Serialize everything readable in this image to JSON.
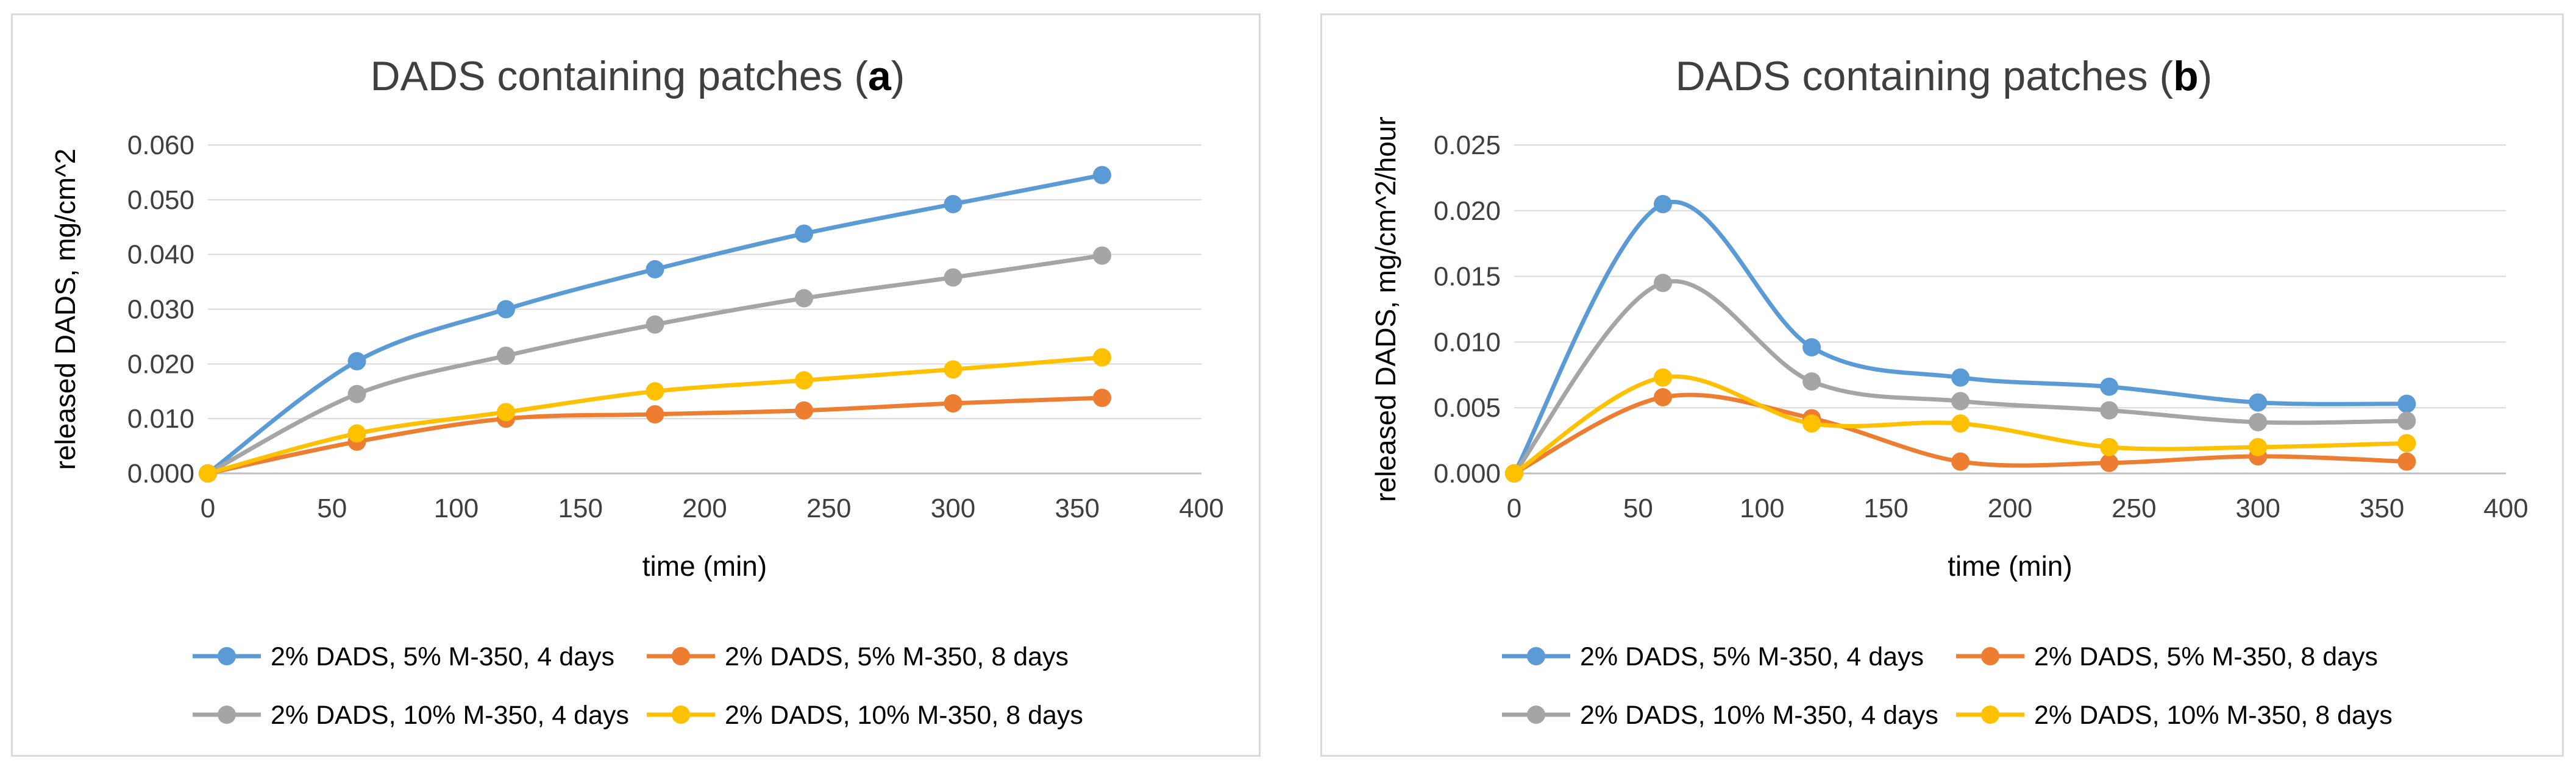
{
  "chart_data": [
    {
      "type": "line",
      "title": "DADS containing patches (",
      "title_letter": "a",
      "title_close": ")",
      "xlabel": "time (min)",
      "ylabel": "released DADS, mg/cm^2",
      "xlim": [
        0,
        400
      ],
      "ylim": [
        0,
        0.06
      ],
      "x_ticks": [
        0,
        50,
        100,
        150,
        200,
        250,
        300,
        350,
        400
      ],
      "x_tick_labels": [
        "0",
        "50",
        "100",
        "150",
        "200",
        "250",
        "300",
        "350",
        "400"
      ],
      "y_ticks": [
        0,
        0.01,
        0.02,
        0.03,
        0.04,
        0.05,
        0.06
      ],
      "y_tick_labels": [
        "0.000",
        "0.010",
        "0.020",
        "0.030",
        "0.040",
        "0.050",
        "0.060"
      ],
      "grid": "horizontal",
      "legend_position": "bottom",
      "x": [
        0,
        60,
        120,
        180,
        240,
        300,
        360
      ],
      "series": [
        {
          "name": "2% DADS, 5% M-350, 4 days",
          "color": "#5b9bd5",
          "values": [
            0.0,
            0.0205,
            0.03,
            0.0373,
            0.0438,
            0.0492,
            0.0545
          ]
        },
        {
          "name": "2% DADS, 5% M-350, 8 days",
          "color": "#ed7d31",
          "values": [
            0.0,
            0.0058,
            0.01,
            0.0108,
            0.0115,
            0.0128,
            0.0138
          ]
        },
        {
          "name": "2% DADS, 10% M-350, 4 days",
          "color": "#a5a5a5",
          "values": [
            0.0,
            0.0145,
            0.0215,
            0.0272,
            0.032,
            0.0358,
            0.0398
          ]
        },
        {
          "name": "2% DADS, 10% M-350, 8 days",
          "color": "#ffc000",
          "values": [
            0.0,
            0.0073,
            0.0112,
            0.015,
            0.017,
            0.019,
            0.0212
          ]
        }
      ]
    },
    {
      "type": "line",
      "title": "DADS containing patches (",
      "title_letter": "b",
      "title_close": ")",
      "xlabel": "time (min)",
      "ylabel": "released DADS, mg/cm^2/hour",
      "xlim": [
        0,
        400
      ],
      "ylim": [
        0,
        0.025
      ],
      "x_ticks": [
        0,
        50,
        100,
        150,
        200,
        250,
        300,
        350,
        400
      ],
      "x_tick_labels": [
        "0",
        "50",
        "100",
        "150",
        "200",
        "250",
        "300",
        "350",
        "400"
      ],
      "y_ticks": [
        0,
        0.005,
        0.01,
        0.015,
        0.02,
        0.025
      ],
      "y_tick_labels": [
        "0.000",
        "0.005",
        "0.010",
        "0.015",
        "0.020",
        "0.025"
      ],
      "grid": "horizontal",
      "legend_position": "bottom",
      "x": [
        0,
        60,
        120,
        180,
        240,
        300,
        360
      ],
      "series": [
        {
          "name": "2% DADS, 5% M-350, 4 days",
          "color": "#5b9bd5",
          "values": [
            0.0,
            0.0205,
            0.0096,
            0.0073,
            0.0066,
            0.0054,
            0.0053
          ]
        },
        {
          "name": "2% DADS, 5% M-350, 8 days",
          "color": "#ed7d31",
          "values": [
            0.0,
            0.0058,
            0.0042,
            0.0009,
            0.0008,
            0.0013,
            0.0009
          ]
        },
        {
          "name": "2% DADS, 10% M-350, 4 days",
          "color": "#a5a5a5",
          "values": [
            0.0,
            0.0145,
            0.007,
            0.0055,
            0.0048,
            0.0039,
            0.004
          ]
        },
        {
          "name": "2% DADS, 10% M-350, 8 days",
          "color": "#ffc000",
          "values": [
            0.0,
            0.0073,
            0.0038,
            0.0038,
            0.002,
            0.002,
            0.0023
          ]
        }
      ]
    }
  ]
}
